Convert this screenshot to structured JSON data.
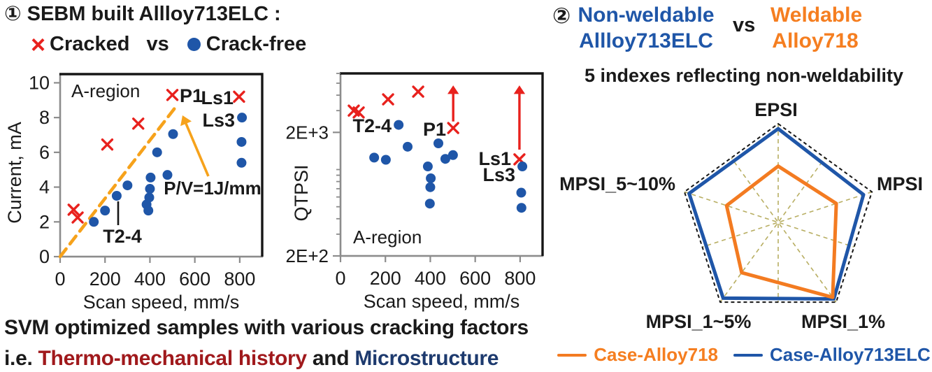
{
  "panel1": {
    "title": "① SEBM built Allloy713ELC :",
    "legend": {
      "cracked_symbol": "×",
      "cracked_label": "Cracked",
      "vs_label": "vs",
      "crackfree_label": "Crack-free"
    },
    "footer_line1": "SVM optimized samples with various cracking factors",
    "footer_line2": [
      {
        "text": "i.e. ",
        "color": "#1a1a1a"
      },
      {
        "text": "Thermo-mechanical history",
        "color": "#a0191c"
      },
      {
        "text": " and ",
        "color": "#1a1a1a"
      },
      {
        "text": "Microstructure",
        "color": "#1d3a6e"
      }
    ]
  },
  "panel2": {
    "index_label": "②",
    "nonweldable": {
      "line1": "Non-weldable",
      "line2": "Allloy713ELC",
      "color": "#1f56a8"
    },
    "vs_label": "vs",
    "weldable": {
      "line1": "Weldable",
      "line2": "Alloy718",
      "color": "#f57e20"
    },
    "subtitle": "5 indexes reflecting non-weldability"
  },
  "chart_data": [
    {
      "type": "scatter",
      "title": "SEBM built Allloy713ELC cracking map",
      "xlabel": "Scan speed, mm/s",
      "ylabel": "Current, mA",
      "xlim": [
        0,
        900
      ],
      "ylim": [
        0,
        10.5
      ],
      "xticks": [
        0,
        200,
        400,
        600,
        800
      ],
      "yticks": [
        0,
        2,
        4,
        6,
        8,
        10
      ],
      "series": [
        {
          "name": "Cracked",
          "marker": "x",
          "color": "#e8211d",
          "points": [
            [
              60,
              2.7
            ],
            [
              78,
              2.25
            ],
            [
              210,
              6.45
            ],
            [
              348,
              7.65
            ],
            [
              500,
              9.3
            ],
            [
              797,
              9.2
            ]
          ]
        },
        {
          "name": "Crack-free",
          "marker": "dot",
          "color": "#1f56a8",
          "points": [
            [
              150,
              2.0
            ],
            [
              200,
              2.65
            ],
            [
              252,
              3.5
            ],
            [
              300,
              4.1
            ],
            [
              385,
              3.0
            ],
            [
              393,
              2.65
            ],
            [
              397,
              3.4
            ],
            [
              400,
              3.9
            ],
            [
              403,
              4.55
            ],
            [
              432,
              6.0
            ],
            [
              478,
              4.7
            ],
            [
              503,
              7.05
            ],
            [
              810,
              8.0
            ],
            [
              808,
              6.6
            ],
            [
              808,
              5.4
            ]
          ]
        }
      ],
      "refline": {
        "label": "P/V=1J/mm",
        "color": "#f6a21b",
        "from": [
          0,
          0
        ],
        "to": [
          520,
          8.7
        ]
      },
      "annotations": [
        {
          "id": "a_region",
          "text": "A-region",
          "color": "#29a8e0"
        },
        {
          "id": "p1",
          "text": "P1",
          "color": "#e8211d"
        },
        {
          "id": "ls1",
          "text": "Ls1",
          "color": "#e8211d"
        },
        {
          "id": "ls3",
          "text": "Ls3",
          "color": "#1f56a8"
        },
        {
          "id": "t24",
          "text": "T2-4",
          "color": "#1f56a8"
        },
        {
          "id": "pv",
          "text": "P/V=1J/mm",
          "color": "#f6a21b"
        }
      ]
    },
    {
      "type": "scatter",
      "title": "QTPSI vs scan speed",
      "xlabel": "Scan speed, mm/s",
      "ylabel": "QTPSI",
      "yscale": "log",
      "xlim": [
        0,
        900
      ],
      "ylim": [
        200,
        6000
      ],
      "xticks": [
        0,
        200,
        400,
        600,
        800
      ],
      "ytick_labels": [
        {
          "value": 2000,
          "label": "2E+3"
        },
        {
          "value": 200,
          "label": "2E+2"
        }
      ],
      "yticks_minor": [
        300,
        400,
        500,
        600,
        700,
        800,
        900,
        1000,
        3000,
        4000,
        5000,
        6000
      ],
      "series": [
        {
          "name": "Cracked",
          "marker": "x",
          "color": "#e8211d",
          "points": [
            [
              59,
              3000
            ],
            [
              81,
              2900
            ],
            [
              212,
              3700
            ],
            [
              346,
              4270
            ],
            [
              502,
              2170
            ],
            [
              797,
              1210
            ]
          ]
        },
        {
          "name": "Crack-free",
          "marker": "dot",
          "color": "#1f56a8",
          "points": [
            [
              150,
              1250
            ],
            [
              202,
              1200
            ],
            [
              259,
              2300
            ],
            [
              299,
              1530
            ],
            [
              389,
              1060
            ],
            [
              402,
              850
            ],
            [
              400,
              720
            ],
            [
              398,
              530
            ],
            [
              436,
              1630
            ],
            [
              467,
              1220
            ],
            [
              501,
              1310
            ],
            [
              810,
              1060
            ],
            [
              805,
              650
            ],
            [
              806,
              490
            ]
          ]
        }
      ],
      "arrows": [
        {
          "x": 502,
          "from": 2450,
          "to": 4800,
          "color": "#e8211d"
        },
        {
          "x": 797,
          "from": 1450,
          "to": 4800,
          "color": "#e8211d"
        }
      ],
      "annotations": [
        {
          "id": "t24",
          "text": "T2-4",
          "color": "#1f56a8"
        },
        {
          "id": "p1",
          "text": "P1",
          "color": "#e8211d"
        },
        {
          "id": "ls1",
          "text": "Ls1",
          "color": "#e8211d"
        },
        {
          "id": "ls3",
          "text": "Ls3",
          "color": "#1f56a8"
        },
        {
          "id": "a_region",
          "text": "A-region",
          "color": "#29a8e0"
        }
      ]
    },
    {
      "type": "radar",
      "title": "5 indexes reflecting non-weldability",
      "axes": [
        "EPSI",
        "MPSI",
        "MPSI_1%",
        "MPSI_1~5%",
        "MPSI_5~10%"
      ],
      "scale": [
        0,
        1
      ],
      "series": [
        {
          "name": "Case-Alloy713ELC",
          "color": "#1f56a8",
          "values": [
            0.95,
            0.91,
            0.96,
            0.95,
            0.95
          ]
        },
        {
          "name": "Case-Alloy718",
          "color": "#f37b21",
          "values": [
            0.57,
            0.62,
            0.94,
            0.63,
            0.55
          ]
        }
      ],
      "legend": [
        {
          "label": "Case-Alloy718",
          "color": "#f37b21"
        },
        {
          "label": "Case-Alloy713ELC",
          "color": "#1f56a8"
        }
      ],
      "grid_color": "#b8ae62",
      "outline_color": "#161616"
    }
  ]
}
